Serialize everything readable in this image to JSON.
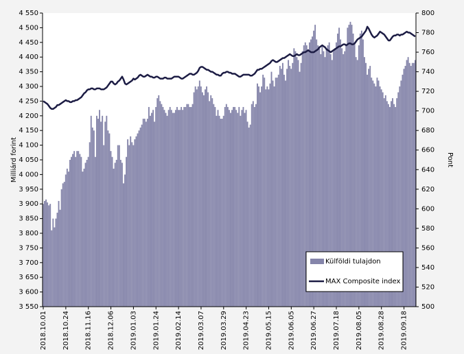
{
  "chart_data": {
    "type": "bar",
    "y_label": "Milliárd forint",
    "y2_label": "Pont",
    "categories": [
      "2018.10.01",
      null,
      null,
      null,
      null,
      null,
      null,
      null,
      null,
      null,
      null,
      null,
      null,
      null,
      null,
      null,
      "2018.10.24",
      null,
      null,
      null,
      null,
      null,
      null,
      null,
      null,
      null,
      null,
      null,
      null,
      null,
      null,
      null,
      "2018.11.16",
      null,
      null,
      null,
      null,
      null,
      null,
      null,
      null,
      null,
      null,
      null,
      null,
      null,
      null,
      null,
      "2018.12.06",
      null,
      null,
      null,
      null,
      null,
      null,
      null,
      null,
      null,
      null,
      null,
      null,
      null,
      null,
      null,
      "2019.01.03",
      null,
      null,
      null,
      null,
      null,
      null,
      null,
      null,
      null,
      null,
      null,
      null,
      null,
      null,
      null,
      "2019.01.24",
      null,
      null,
      null,
      null,
      null,
      null,
      null,
      null,
      null,
      null,
      null,
      null,
      null,
      null,
      null,
      "2019.02.14",
      null,
      null,
      null,
      null,
      null,
      null,
      null,
      null,
      null,
      null,
      null,
      null,
      null,
      null,
      null,
      "2019.03.07",
      null,
      null,
      null,
      null,
      null,
      null,
      null,
      null,
      null,
      null,
      null,
      null,
      null,
      null,
      null,
      "2019.03.29",
      null,
      null,
      null,
      null,
      null,
      null,
      null,
      null,
      null,
      null,
      null,
      null,
      null,
      null,
      null,
      "2019.04.23",
      null,
      null,
      null,
      null,
      null,
      null,
      null,
      null,
      null,
      null,
      null,
      null,
      null,
      null,
      null,
      "2019.05.15",
      null,
      null,
      null,
      null,
      null,
      null,
      null,
      null,
      null,
      null,
      null,
      null,
      null,
      null,
      null,
      "2019.06.05",
      null,
      null,
      null,
      null,
      null,
      null,
      null,
      null,
      null,
      null,
      null,
      null,
      null,
      null,
      null,
      "2019.06.27",
      null,
      null,
      null,
      null,
      null,
      null,
      null,
      null,
      null,
      null,
      null,
      null,
      null,
      null,
      null,
      "2019.07.18",
      null,
      null,
      null,
      null,
      null,
      null,
      null,
      null,
      null,
      null,
      null,
      null,
      null,
      null,
      null,
      "2019.08.05",
      null,
      null,
      null,
      null,
      null,
      null,
      null,
      null,
      null,
      null,
      null,
      null,
      null,
      null,
      null,
      "2019.08.28",
      null,
      null,
      null,
      null,
      null,
      null,
      null,
      null,
      null,
      null,
      null,
      null,
      null,
      null,
      null,
      "2019.09.18",
      null,
      null,
      null,
      null,
      null,
      null,
      null,
      null
    ],
    "series": [
      {
        "name": "Külföldi tulajdon",
        "type": "bar",
        "color": "#8585aa",
        "values": [
          3900,
          3910,
          3915,
          3905,
          3895,
          3900,
          3810,
          3850,
          3820,
          3850,
          3870,
          3910,
          3880,
          3950,
          3970,
          3975,
          4000,
          4020,
          4010,
          4050,
          4060,
          4070,
          4080,
          4060,
          4080,
          4080,
          4070,
          4060,
          4010,
          4020,
          4040,
          4050,
          4060,
          4110,
          4200,
          4160,
          4150,
          4060,
          4200,
          4190,
          4220,
          4180,
          4200,
          4100,
          4180,
          4200,
          4150,
          4140,
          4080,
          4060,
          4020,
          4040,
          4050,
          4100,
          4100,
          4050,
          4040,
          3970,
          4000,
          4060,
          4120,
          4100,
          4130,
          4110,
          4100,
          4120,
          4130,
          4140,
          4150,
          4160,
          4170,
          4190,
          4190,
          4180,
          4190,
          4230,
          4200,
          4210,
          4220,
          4180,
          4230,
          4260,
          4270,
          4250,
          4240,
          4230,
          4220,
          4210,
          4200,
          4220,
          4230,
          4220,
          4210,
          4210,
          4220,
          4230,
          4220,
          4220,
          4230,
          4220,
          4230,
          4230,
          4240,
          4240,
          4230,
          4230,
          4240,
          4280,
          4300,
          4290,
          4300,
          4320,
          4300,
          4280,
          4270,
          4290,
          4300,
          4280,
          4250,
          4270,
          4260,
          4240,
          4230,
          4200,
          4220,
          4200,
          4190,
          4190,
          4200,
          4230,
          4240,
          4230,
          4220,
          4210,
          4220,
          4230,
          4230,
          4220,
          4210,
          4230,
          4200,
          4220,
          4230,
          4210,
          4220,
          4180,
          4160,
          4170,
          4240,
          4250,
          4230,
          4240,
          4310,
          4300,
          4280,
          4300,
          4340,
          4330,
          4290,
          4300,
          4290,
          4310,
          4350,
          4320,
          4300,
          4330,
          4330,
          4340,
          4370,
          4360,
          4380,
          4340,
          4320,
          4360,
          4390,
          4370,
          4360,
          4380,
          4430,
          4420,
          4400,
          4390,
          4350,
          4380,
          4420,
          4440,
          4450,
          4440,
          4420,
          4450,
          4460,
          4470,
          4490,
          4510,
          4460,
          4440,
          4430,
          4410,
          4440,
          4420,
          4400,
          4430,
          4440,
          4450,
          4410,
          4390,
          4420,
          4430,
          4450,
          4480,
          4500,
          4460,
          4430,
          4410,
          4420,
          4440,
          4500,
          4510,
          4520,
          4510,
          4480,
          4450,
          4400,
          4390,
          4440,
          4480,
          4490,
          4460,
          4400,
          4380,
          4340,
          4360,
          4370,
          4330,
          4320,
          4310,
          4300,
          4330,
          4320,
          4300,
          4290,
          4280,
          4260,
          4270,
          4250,
          4240,
          4230,
          4250,
          4260,
          4240,
          4230,
          4260,
          4280,
          4300,
          4320,
          4340,
          4360,
          4370,
          4390,
          4400,
          4380,
          4370,
          4380,
          4380,
          4390
        ]
      },
      {
        "name": "MAX Composite index",
        "type": "line",
        "axis": "y2",
        "color": "#1c1c44",
        "values": [
          710,
          709,
          708,
          707,
          705,
          703,
          702,
          702,
          703,
          704,
          706,
          706,
          707,
          708,
          709,
          710,
          711,
          710,
          710,
          709,
          709,
          710,
          710,
          711,
          711,
          712,
          713,
          714,
          716,
          718,
          719,
          721,
          722,
          722,
          723,
          723,
          722,
          722,
          723,
          723,
          723,
          722,
          722,
          722,
          723,
          724,
          726,
          728,
          730,
          730,
          728,
          727,
          728,
          730,
          731,
          733,
          735,
          732,
          728,
          727,
          728,
          729,
          730,
          731,
          733,
          732,
          733,
          734,
          736,
          737,
          736,
          735,
          735,
          736,
          737,
          736,
          735,
          735,
          734,
          734,
          735,
          735,
          734,
          733,
          733,
          733,
          734,
          734,
          733,
          733,
          733,
          733,
          734,
          735,
          735,
          735,
          735,
          734,
          733,
          733,
          734,
          735,
          736,
          737,
          738,
          738,
          737,
          737,
          738,
          739,
          741,
          744,
          745,
          745,
          744,
          743,
          742,
          742,
          741,
          740,
          740,
          739,
          738,
          737,
          737,
          736,
          736,
          738,
          739,
          739,
          740,
          740,
          739,
          739,
          738,
          738,
          738,
          737,
          736,
          735,
          735,
          736,
          737,
          737,
          737,
          737,
          737,
          736,
          736,
          737,
          738,
          740,
          742,
          742,
          743,
          743,
          744,
          745,
          746,
          747,
          748,
          749,
          751,
          752,
          751,
          750,
          750,
          751,
          752,
          753,
          754,
          754,
          755,
          756,
          757,
          758,
          757,
          756,
          756,
          757,
          758,
          757,
          757,
          758,
          759,
          760,
          760,
          761,
          762,
          761,
          760,
          760,
          760,
          761,
          762,
          763,
          765,
          766,
          767,
          766,
          765,
          763,
          762,
          761,
          760,
          761,
          762,
          763,
          764,
          765,
          766,
          766,
          767,
          768,
          768,
          767,
          768,
          769,
          769,
          768,
          768,
          769,
          771,
          773,
          774,
          775,
          776,
          778,
          780,
          782,
          786,
          784,
          781,
          778,
          776,
          775,
          776,
          777,
          779,
          781,
          780,
          779,
          778,
          776,
          774,
          772,
          772,
          774,
          776,
          777,
          777,
          778,
          778,
          777,
          778,
          778,
          779,
          780,
          781,
          780,
          780,
          779,
          778,
          777,
          776
        ]
      }
    ],
    "ylim": [
      3550,
      4550
    ],
    "yticks": [
      {
        "value": 3550,
        "label": "3 550"
      },
      {
        "value": 3600,
        "label": "3 600"
      },
      {
        "value": 3650,
        "label": "3 650"
      },
      {
        "value": 3700,
        "label": "3 700"
      },
      {
        "value": 3750,
        "label": "3 750"
      },
      {
        "value": 3800,
        "label": "3 800"
      },
      {
        "value": 3850,
        "label": "3 850"
      },
      {
        "value": 3900,
        "label": "3 900"
      },
      {
        "value": 3950,
        "label": "3 950"
      },
      {
        "value": 4000,
        "label": "4 000"
      },
      {
        "value": 4050,
        "label": "4 050"
      },
      {
        "value": 4100,
        "label": "4 100"
      },
      {
        "value": 4150,
        "label": "4 150"
      },
      {
        "value": 4200,
        "label": "4 200"
      },
      {
        "value": 4250,
        "label": "4 250"
      },
      {
        "value": 4300,
        "label": "4 300"
      },
      {
        "value": 4350,
        "label": "4 350"
      },
      {
        "value": 4400,
        "label": "4 400"
      },
      {
        "value": 4450,
        "label": "4 450"
      },
      {
        "value": 4500,
        "label": "4 500"
      },
      {
        "value": 4550,
        "label": "4 550"
      }
    ],
    "y2lim": [
      500,
      800
    ],
    "y2ticks": [
      500,
      520,
      540,
      560,
      580,
      600,
      620,
      640,
      660,
      680,
      700,
      720,
      740,
      760,
      780,
      800
    ],
    "grid": false,
    "legend": "lower right"
  }
}
